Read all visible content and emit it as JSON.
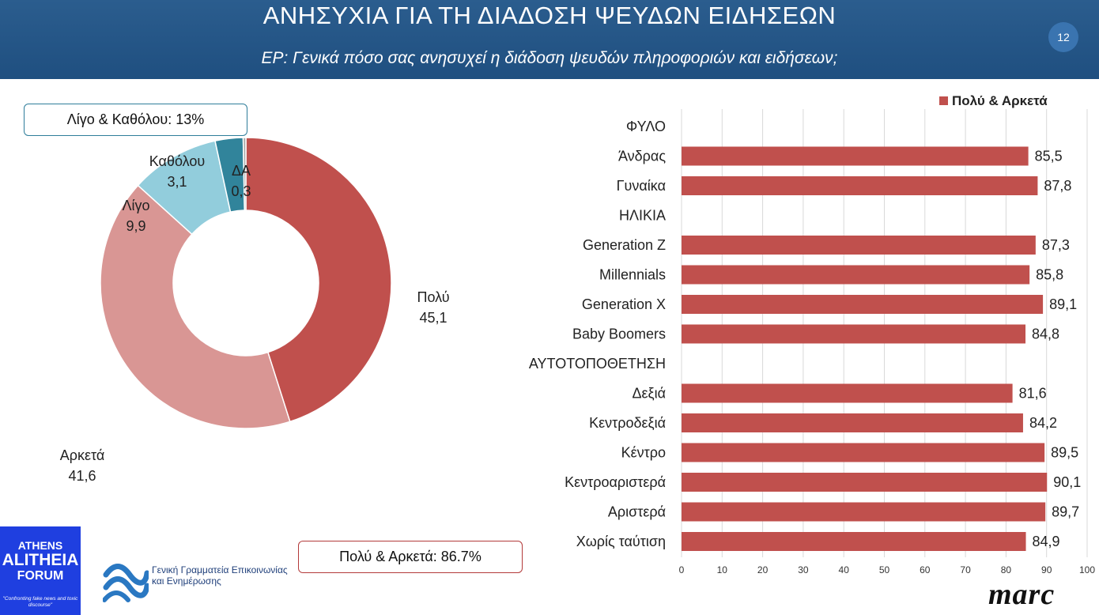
{
  "header": {
    "title": "ΑΝΗΣΥΧΙΑ ΓΙΑ ΤΗ ΔΙΑΔΟΣΗ ΨΕΥΔΩΝ ΕΙΔΗΣΕΩΝ",
    "question": "ΕΡ: Γενικά πόσο σας ανησυχεί η διάδοση ψευδών πληροφοριών και ειδήσεων;",
    "page_number": "12"
  },
  "callouts": {
    "low": "Λίγο & Καθόλου: 13%",
    "high": "Πολύ & Αρκετά: 86.7%"
  },
  "colors": {
    "header_bg": "#1f4f80",
    "polu": "#c0504d",
    "arketa": "#d99694",
    "ligo": "#92cddc",
    "katholou": "#31849b",
    "da": "#a6a6a6",
    "bar": "#c0504d"
  },
  "chart_data": [
    {
      "type": "pie",
      "variant": "donut",
      "slices": [
        {
          "label": "Πολύ",
          "value": 45.1,
          "value_text": "45,1",
          "color": "#c0504d"
        },
        {
          "label": "Αρκετά",
          "value": 41.6,
          "value_text": "41,6",
          "color": "#d99694"
        },
        {
          "label": "Λίγο",
          "value": 9.9,
          "value_text": "9,9",
          "color": "#92cddc"
        },
        {
          "label": "Καθόλου",
          "value": 3.1,
          "value_text": "3,1",
          "color": "#31849b"
        },
        {
          "label": "ΔΑ",
          "value": 0.3,
          "value_text": "0,3",
          "color": "#a6a6a6"
        }
      ]
    },
    {
      "type": "bar",
      "orientation": "horizontal",
      "legend": "Πολύ & Αρκετά",
      "legend_position": "top-right",
      "xlim": [
        0,
        100
      ],
      "xticks": [
        0,
        10,
        20,
        30,
        40,
        50,
        60,
        70,
        80,
        90,
        100
      ],
      "grid": true,
      "categories": [
        "ΦΥΛΟ",
        "Άνδρας",
        "Γυναίκα",
        "ΗΛΙΚΙΑ",
        "Generation Z",
        "Millennials",
        "Generation X",
        "Baby Boomers",
        "ΑΥΤΟΤΟΠΟΘΕΤΗΣΗ",
        "Δεξιά",
        "Κεντροδεξιά",
        "Κέντρο",
        "Κεντροαριστερά",
        "Αριστερά",
        "Χωρίς ταύτιση"
      ],
      "values": [
        null,
        85.5,
        87.8,
        null,
        87.3,
        85.8,
        89.1,
        84.8,
        null,
        81.6,
        84.2,
        89.5,
        90.1,
        89.7,
        84.9
      ],
      "value_labels": [
        "",
        "85,5",
        "87,8",
        "",
        "87,3",
        "85,8",
        "89,1",
        "84,8",
        "",
        "81,6",
        "84,2",
        "89,5",
        "90,1",
        "89,7",
        "84,9"
      ],
      "series": [
        {
          "name": "Πολύ & Αρκετά",
          "color": "#c0504d"
        }
      ]
    }
  ],
  "logos": {
    "athens_line1": "ATHENS",
    "athens_line2": "ALITHEIA",
    "athens_line3": "FORUM",
    "athens_tagline": "\"Confronting fake news and toxic discourse\"",
    "gov_line1": "Γενική Γραμματεία Επικοινωνίας",
    "gov_line2": "και Ενημέρωσης",
    "marc": "marc"
  }
}
